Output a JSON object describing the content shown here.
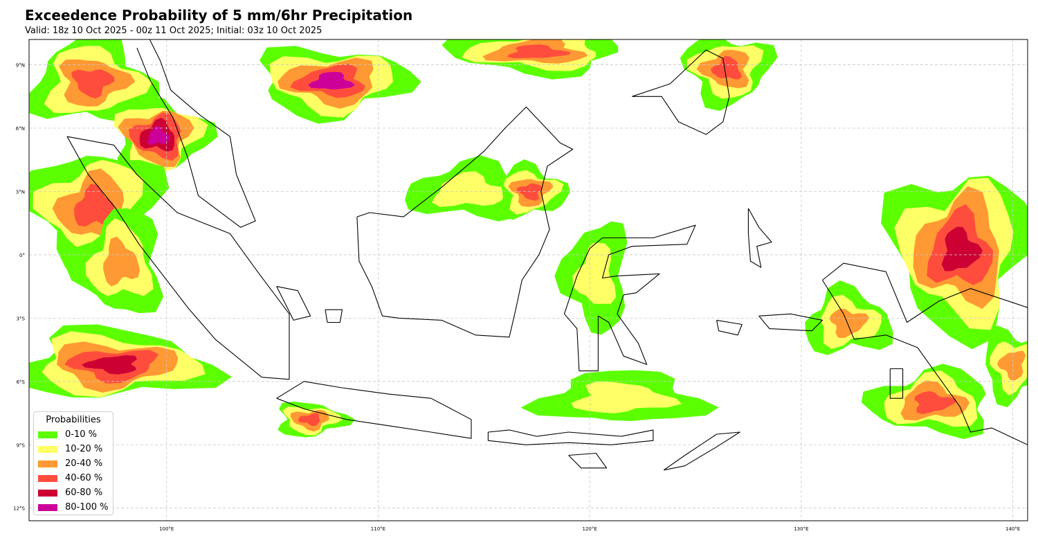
{
  "title": "Exceedence Probability of 5 mm/6hr Precipitation",
  "subtitle": "Valid: 18z 10 Oct 2025 - 00z 11 Oct 2025; Initial: 03z 10 Oct 2025",
  "map": {
    "lon_range": [
      93.5,
      140.7
    ],
    "lat_range": [
      -12.6,
      10.2
    ],
    "grid": true,
    "coastlines": true,
    "lon_ticks": [
      {
        "value": 100,
        "label": "100°E"
      },
      {
        "value": 110,
        "label": "110°E"
      },
      {
        "value": 120,
        "label": "120°E"
      },
      {
        "value": 130,
        "label": "130°E"
      },
      {
        "value": 140,
        "label": "140°E"
      }
    ],
    "lat_ticks": [
      {
        "value": 9,
        "label": "9°N"
      },
      {
        "value": 6,
        "label": "6°N"
      },
      {
        "value": 3,
        "label": "3°N"
      },
      {
        "value": 0,
        "label": "0°"
      },
      {
        "value": -3,
        "label": "3°S"
      },
      {
        "value": -6,
        "label": "6°S"
      },
      {
        "value": -9,
        "label": "9°S"
      },
      {
        "value": -12,
        "label": "12°S"
      }
    ]
  },
  "legend": {
    "title": "Probabilities",
    "placement": "lower-left",
    "items": [
      {
        "label": "0-10 %",
        "color": "#5cff00"
      },
      {
        "label": "10-20 %",
        "color": "#ffff66"
      },
      {
        "label": "20-40 %",
        "color": "#ff9933"
      },
      {
        "label": "40-60 %",
        "color": "#ff4d3d"
      },
      {
        "label": "60-80 %",
        "color": "#cc0033"
      },
      {
        "label": "80-100 %",
        "color": "#cc0099"
      }
    ]
  },
  "precip_regions": [
    {
      "name": "north-andaman",
      "lon": 96.5,
      "lat": 8.2,
      "rx": 2.8,
      "ry": 2.0,
      "levels": [
        1,
        2,
        3,
        4
      ]
    },
    {
      "name": "malay-north",
      "lon": 99.6,
      "lat": 5.6,
      "rx": 2.2,
      "ry": 1.8,
      "levels": [
        1,
        2,
        3,
        4,
        5,
        6
      ]
    },
    {
      "name": "sumatra-west",
      "lon": 96.6,
      "lat": 2.2,
      "rx": 3.0,
      "ry": 2.8,
      "levels": [
        1,
        2,
        3,
        4
      ]
    },
    {
      "name": "sumatra-coast",
      "lon": 97.8,
      "lat": -0.4,
      "rx": 2.0,
      "ry": 2.4,
      "levels": [
        1,
        2,
        3
      ]
    },
    {
      "name": "indian-ocean-sw",
      "lon": 97.5,
      "lat": -5.2,
      "rx": 4.5,
      "ry": 1.6,
      "levels": [
        1,
        2,
        3,
        4,
        5
      ]
    },
    {
      "name": "south-china-sea",
      "lon": 107.8,
      "lat": 8.2,
      "rx": 3.5,
      "ry": 1.6,
      "levels": [
        1,
        2,
        3,
        4,
        6
      ]
    },
    {
      "name": "scs-north",
      "lon": 117.5,
      "lat": 9.6,
      "rx": 4.0,
      "ry": 1.0,
      "levels": [
        1,
        2,
        3,
        4
      ]
    },
    {
      "name": "borneo-west",
      "lon": 114.3,
      "lat": 3.0,
      "rx": 2.8,
      "ry": 1.3,
      "levels": [
        1,
        2
      ]
    },
    {
      "name": "borneo-east",
      "lon": 117.2,
      "lat": 3.0,
      "rx": 1.6,
      "ry": 1.2,
      "levels": [
        1,
        2,
        3,
        4
      ]
    },
    {
      "name": "mindanao-sea",
      "lon": 126.5,
      "lat": 8.8,
      "rx": 2.0,
      "ry": 1.6,
      "levels": [
        1,
        2,
        3,
        4
      ]
    },
    {
      "name": "sulawesi-central",
      "lon": 120.3,
      "lat": -1.0,
      "rx": 1.5,
      "ry": 2.5,
      "levels": [
        1,
        2
      ]
    },
    {
      "name": "java-sea-south",
      "lon": 121.5,
      "lat": -6.8,
      "rx": 3.8,
      "ry": 1.2,
      "levels": [
        1,
        2
      ]
    },
    {
      "name": "sumbawa",
      "lon": 106.8,
      "lat": -7.8,
      "rx": 1.6,
      "ry": 0.8,
      "levels": [
        1,
        2,
        3,
        4
      ]
    },
    {
      "name": "papua-north",
      "lon": 137.5,
      "lat": 0.2,
      "rx": 3.2,
      "ry": 3.8,
      "levels": [
        1,
        2,
        3,
        4,
        5
      ]
    },
    {
      "name": "papua-south",
      "lon": 136.2,
      "lat": -7.0,
      "rx": 2.8,
      "ry": 1.5,
      "levels": [
        1,
        2,
        3,
        4
      ]
    },
    {
      "name": "maluku",
      "lon": 132.2,
      "lat": -3.2,
      "rx": 2.0,
      "ry": 1.5,
      "levels": [
        1,
        2,
        3
      ]
    },
    {
      "name": "arafura",
      "lon": 140.0,
      "lat": -5.2,
      "rx": 1.4,
      "ry": 1.6,
      "levels": [
        1,
        2,
        3
      ]
    }
  ],
  "land_outlines": [
    {
      "name": "sumatra",
      "pts": [
        [
          95.3,
          5.6
        ],
        [
          97.5,
          5.2
        ],
        [
          98.6,
          3.8
        ],
        [
          100.5,
          2.0
        ],
        [
          103.0,
          1.0
        ],
        [
          104.3,
          -0.8
        ],
        [
          105.8,
          -2.8
        ],
        [
          105.8,
          -5.9
        ],
        [
          104.5,
          -5.8
        ],
        [
          102.3,
          -4.0
        ],
        [
          101.0,
          -2.5
        ],
        [
          99.7,
          -0.8
        ],
        [
          98.7,
          0.5
        ],
        [
          97.6,
          2.2
        ],
        [
          96.3,
          3.8
        ],
        [
          95.3,
          5.6
        ]
      ]
    },
    {
      "name": "malay-peninsula",
      "pts": [
        [
          98.6,
          9.8
        ],
        [
          99.2,
          8.3
        ],
        [
          100.3,
          6.5
        ],
        [
          101.0,
          4.6
        ],
        [
          101.5,
          2.8
        ],
        [
          103.5,
          1.3
        ],
        [
          104.2,
          1.6
        ],
        [
          103.3,
          3.8
        ],
        [
          103.0,
          5.6
        ],
        [
          101.6,
          6.6
        ],
        [
          100.2,
          7.8
        ],
        [
          99.7,
          9.2
        ],
        [
          99.2,
          10.2
        ]
      ]
    },
    {
      "name": "borneo",
      "pts": [
        [
          109.0,
          1.8
        ],
        [
          109.6,
          2.0
        ],
        [
          111.2,
          1.8
        ],
        [
          113.0,
          3.2
        ],
        [
          115.0,
          4.9
        ],
        [
          116.0,
          6.0
        ],
        [
          117.0,
          7.0
        ],
        [
          118.6,
          5.3
        ],
        [
          119.2,
          5.0
        ],
        [
          118.0,
          4.2
        ],
        [
          117.7,
          3.0
        ],
        [
          118.1,
          1.2
        ],
        [
          117.6,
          0.0
        ],
        [
          116.8,
          -1.2
        ],
        [
          116.5,
          -2.6
        ],
        [
          116.2,
          -3.9
        ],
        [
          114.6,
          -3.8
        ],
        [
          113.0,
          -3.1
        ],
        [
          111.0,
          -3.0
        ],
        [
          110.2,
          -2.9
        ],
        [
          109.7,
          -1.5
        ],
        [
          109.1,
          -0.3
        ],
        [
          109.0,
          1.8
        ]
      ]
    },
    {
      "name": "java",
      "pts": [
        [
          105.2,
          -6.8
        ],
        [
          106.5,
          -6.0
        ],
        [
          108.3,
          -6.3
        ],
        [
          110.5,
          -6.6
        ],
        [
          112.5,
          -6.8
        ],
        [
          114.4,
          -7.8
        ],
        [
          114.4,
          -8.7
        ],
        [
          112.5,
          -8.4
        ],
        [
          110.5,
          -8.1
        ],
        [
          108.5,
          -7.8
        ],
        [
          106.5,
          -7.3
        ],
        [
          105.2,
          -6.8
        ]
      ]
    },
    {
      "name": "sulawesi",
      "pts": [
        [
          119.5,
          -5.5
        ],
        [
          119.4,
          -3.5
        ],
        [
          118.8,
          -2.8
        ],
        [
          119.4,
          -1.0
        ],
        [
          120.0,
          0.3
        ],
        [
          120.6,
          0.8
        ],
        [
          123.0,
          0.8
        ],
        [
          125.0,
          1.4
        ],
        [
          124.6,
          0.5
        ],
        [
          122.0,
          0.4
        ],
        [
          120.9,
          0.0
        ],
        [
          120.6,
          -1.1
        ],
        [
          121.3,
          -1.0
        ],
        [
          123.3,
          -0.9
        ],
        [
          122.2,
          -1.8
        ],
        [
          121.6,
          -1.9
        ],
        [
          121.3,
          -2.8
        ],
        [
          122.3,
          -4.2
        ],
        [
          122.7,
          -5.2
        ],
        [
          121.6,
          -4.8
        ],
        [
          120.9,
          -3.2
        ],
        [
          120.4,
          -2.9
        ],
        [
          120.4,
          -5.5
        ],
        [
          119.5,
          -5.5
        ]
      ]
    },
    {
      "name": "nusa-tenggara",
      "pts": [
        [
          115.2,
          -8.4
        ],
        [
          116.2,
          -8.3
        ],
        [
          117.5,
          -8.6
        ],
        [
          119.0,
          -8.4
        ],
        [
          121.5,
          -8.6
        ],
        [
          123.0,
          -8.3
        ],
        [
          123.0,
          -8.8
        ],
        [
          121.0,
          -9.0
        ],
        [
          119.0,
          -8.9
        ],
        [
          117.0,
          -9.0
        ],
        [
          115.2,
          -8.8
        ],
        [
          115.2,
          -8.4
        ]
      ]
    },
    {
      "name": "timor",
      "pts": [
        [
          123.5,
          -10.2
        ],
        [
          124.5,
          -9.5
        ],
        [
          126.0,
          -8.5
        ],
        [
          127.1,
          -8.4
        ],
        [
          126.0,
          -9.1
        ],
        [
          124.5,
          -10.0
        ],
        [
          123.5,
          -10.2
        ]
      ]
    },
    {
      "name": "sumba",
      "pts": [
        [
          119.0,
          -9.5
        ],
        [
          120.3,
          -9.4
        ],
        [
          120.8,
          -10.1
        ],
        [
          119.6,
          -10.1
        ],
        [
          119.0,
          -9.5
        ]
      ]
    },
    {
      "name": "mindanao",
      "pts": [
        [
          122.0,
          7.5
        ],
        [
          123.8,
          8.1
        ],
        [
          125.5,
          9.7
        ],
        [
          126.3,
          9.3
        ],
        [
          126.6,
          7.5
        ],
        [
          126.3,
          6.3
        ],
        [
          125.5,
          5.7
        ],
        [
          124.2,
          6.3
        ],
        [
          123.4,
          7.5
        ],
        [
          122.0,
          7.5
        ]
      ]
    },
    {
      "name": "halmahera",
      "pts": [
        [
          127.5,
          2.2
        ],
        [
          128.0,
          1.3
        ],
        [
          128.6,
          0.6
        ],
        [
          127.9,
          0.4
        ],
        [
          128.1,
          -0.6
        ],
        [
          127.6,
          -0.3
        ],
        [
          127.5,
          1.0
        ],
        [
          127.5,
          2.2
        ]
      ]
    },
    {
      "name": "seram",
      "pts": [
        [
          128.0,
          -2.9
        ],
        [
          129.5,
          -2.8
        ],
        [
          131.0,
          -3.1
        ],
        [
          130.5,
          -3.6
        ],
        [
          128.5,
          -3.5
        ],
        [
          128.0,
          -2.9
        ]
      ]
    },
    {
      "name": "buru",
      "pts": [
        [
          126.0,
          -3.1
        ],
        [
          127.2,
          -3.3
        ],
        [
          127.0,
          -3.8
        ],
        [
          126.1,
          -3.6
        ],
        [
          126.0,
          -3.1
        ]
      ]
    },
    {
      "name": "new-guinea",
      "pts": [
        [
          131.0,
          -1.2
        ],
        [
          132.0,
          -0.4
        ],
        [
          134.0,
          -0.8
        ],
        [
          135.0,
          -3.2
        ],
        [
          136.5,
          -2.2
        ],
        [
          138.0,
          -1.6
        ],
        [
          140.7,
          -2.5
        ],
        [
          140.7,
          -9.0
        ],
        [
          139.0,
          -8.2
        ],
        [
          138.0,
          -8.4
        ],
        [
          137.5,
          -7.2
        ],
        [
          135.5,
          -4.4
        ],
        [
          134.0,
          -3.8
        ],
        [
          132.5,
          -4.0
        ],
        [
          132.0,
          -2.8
        ],
        [
          131.0,
          -1.2
        ]
      ]
    },
    {
      "name": "aru",
      "pts": [
        [
          134.2,
          -5.4
        ],
        [
          134.8,
          -5.4
        ],
        [
          134.8,
          -6.8
        ],
        [
          134.2,
          -6.8
        ],
        [
          134.2,
          -5.4
        ]
      ]
    },
    {
      "name": "bangka",
      "pts": [
        [
          105.2,
          -1.5
        ],
        [
          106.2,
          -1.7
        ],
        [
          106.8,
          -2.9
        ],
        [
          106.0,
          -3.1
        ],
        [
          105.2,
          -1.5
        ]
      ]
    },
    {
      "name": "belitung",
      "pts": [
        [
          107.5,
          -2.6
        ],
        [
          108.3,
          -2.6
        ],
        [
          108.2,
          -3.2
        ],
        [
          107.6,
          -3.2
        ],
        [
          107.5,
          -2.6
        ]
      ]
    }
  ]
}
